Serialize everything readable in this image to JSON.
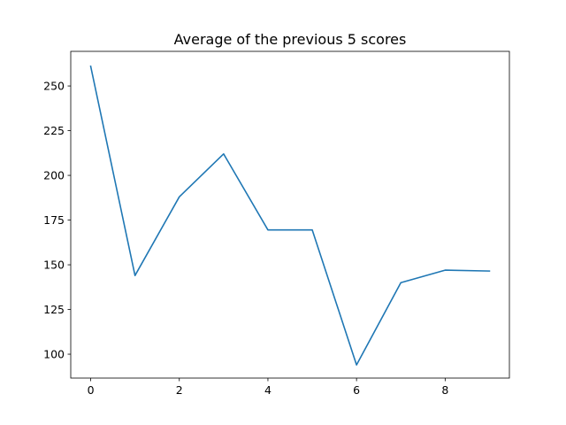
{
  "chart_data": {
    "type": "line",
    "title": "Average of the previous 5 scores",
    "xlabel": "",
    "ylabel": "",
    "x": [
      0,
      1,
      2,
      3,
      4,
      5,
      6,
      7,
      8,
      9
    ],
    "series": [
      {
        "values": [
          261,
          144,
          188,
          212,
          169.5,
          169.5,
          94,
          140,
          147,
          146.5
        ]
      }
    ],
    "xlim": [
      -0.45,
      9.45
    ],
    "ylim": [
      86.65,
      269.35
    ],
    "xticks": [
      0,
      2,
      4,
      6,
      8
    ],
    "yticks": [
      100,
      125,
      150,
      175,
      200,
      225,
      250
    ],
    "grid": false,
    "line_color": "#1f77b4"
  }
}
